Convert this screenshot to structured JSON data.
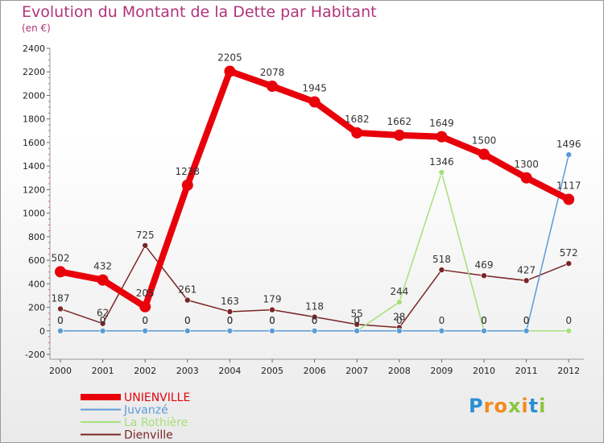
{
  "title": "Evolution du Montant de la Dette par Habitant",
  "subtitle": "(en €)",
  "logo": {
    "text": "Proxiti",
    "letters": [
      "P",
      "r",
      "o",
      "x",
      "i",
      "t",
      "i"
    ],
    "colors": [
      "#2a8fd4",
      "#f28a1c",
      "#f28a1c",
      "#8cc63f",
      "#f28a1c",
      "#2a8fd4",
      "#8cc63f"
    ]
  },
  "chart_data": {
    "type": "line",
    "x": [
      "2000",
      "2001",
      "2002",
      "2003",
      "2004",
      "2005",
      "2006",
      "2007",
      "2008",
      "2009",
      "2010",
      "2011",
      "2012"
    ],
    "y_ticks": [
      "-200",
      "0",
      "200",
      "400",
      "600",
      "800",
      "1000",
      "1200",
      "1400",
      "1600",
      "1800",
      "2000",
      "2200",
      "2400"
    ],
    "ylim": [
      -200,
      2400
    ],
    "grid": false,
    "legend_position": "bottom-left",
    "series": [
      {
        "name": "UNIENVILLE",
        "color": "#e8000b",
        "values": [
          502,
          432,
          205,
          1238,
          2205,
          2078,
          1945,
          1682,
          1662,
          1649,
          1500,
          1300,
          1117
        ],
        "labels": [
          "502",
          "432",
          "205",
          "1238",
          "2205",
          "2078",
          "1945",
          "1682",
          "1662",
          "1649",
          "1500",
          "1300",
          "1117"
        ]
      },
      {
        "name": "Juvanzé",
        "color": "#5b9bd5",
        "values": [
          0,
          0,
          0,
          0,
          0,
          0,
          0,
          0,
          0,
          0,
          0,
          0,
          1496
        ],
        "labels": [
          "0",
          "0",
          "0",
          "0",
          "0",
          "0",
          "0",
          "0",
          "0",
          "0",
          "0",
          "0",
          "1496"
        ]
      },
      {
        "name": "La Rothière",
        "color": "#a6e07a",
        "values": [
          0,
          0,
          0,
          0,
          0,
          0,
          0,
          0,
          244,
          1346,
          0,
          0,
          0
        ],
        "labels": [
          "0",
          "0",
          "0",
          "0",
          "0",
          "0",
          "0",
          "0",
          "244",
          "1346",
          "0",
          "0",
          "0"
        ]
      },
      {
        "name": "Dienville",
        "color": "#7a2626",
        "values": [
          187,
          62,
          725,
          261,
          163,
          179,
          118,
          55,
          28,
          518,
          469,
          427,
          572
        ],
        "labels": [
          "187",
          "62",
          "725",
          "261",
          "163",
          "179",
          "118",
          "55",
          "28",
          "518",
          "469",
          "427",
          "572"
        ]
      }
    ]
  }
}
